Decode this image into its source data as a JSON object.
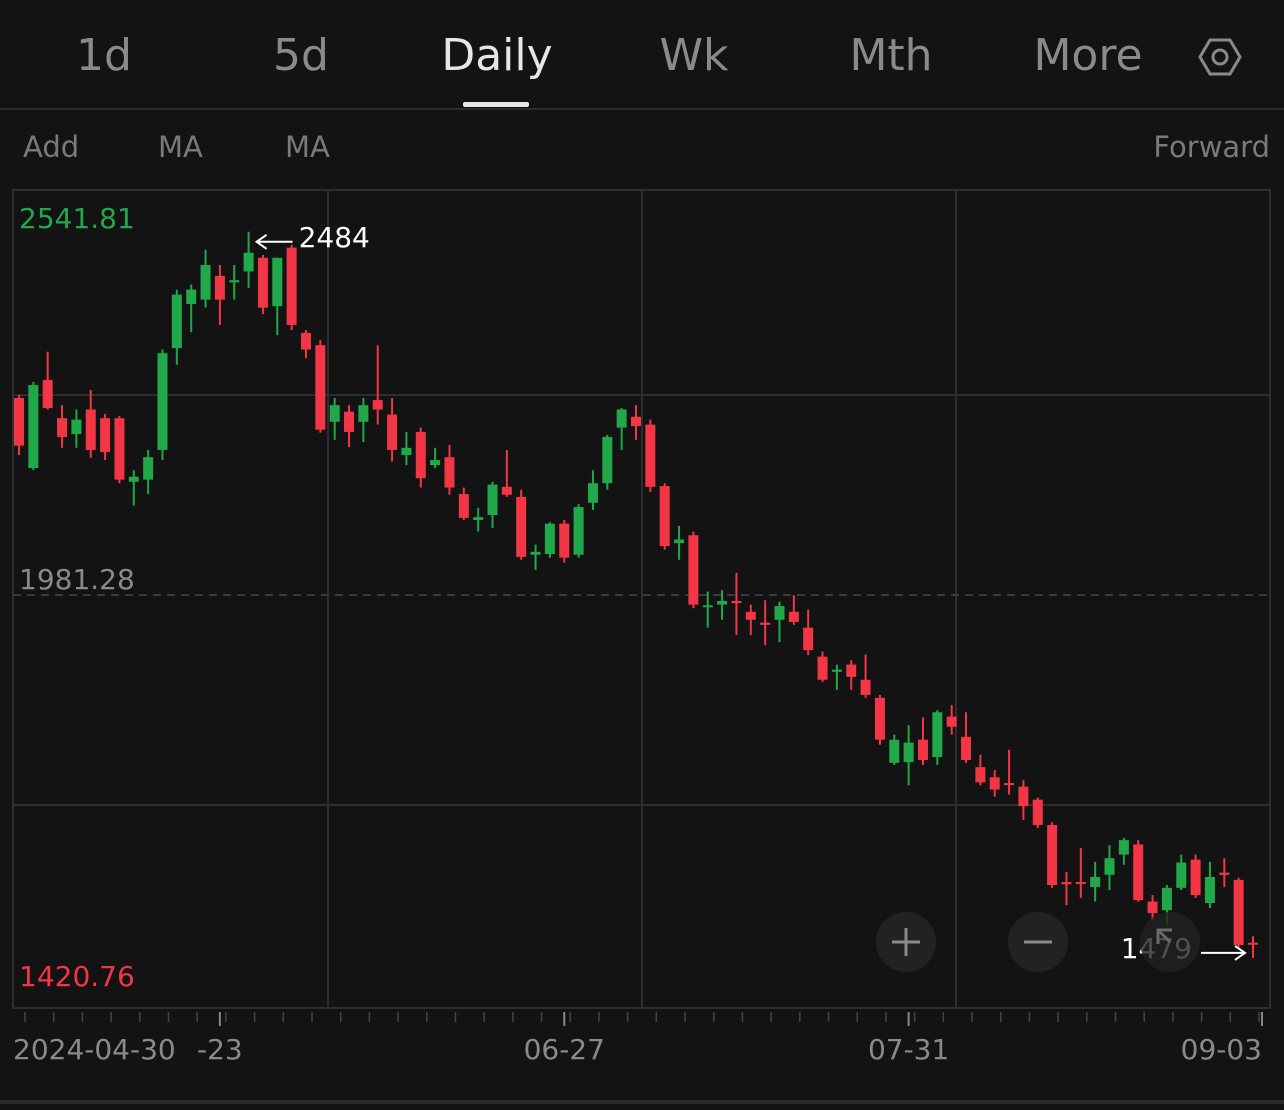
{
  "tabs": [
    "1d",
    "5d",
    "Daily",
    "Wk",
    "Mth",
    "More"
  ],
  "toolbar": [
    "Add",
    "MA",
    "MA",
    "Forward"
  ],
  "chart_data": {
    "type": "candlestick",
    "categories": [
      "2024-04-30",
      null,
      null,
      null,
      null,
      null,
      null,
      null,
      null,
      null,
      null,
      null,
      null,
      null,
      "-23",
      null,
      null,
      null,
      null,
      null,
      null,
      null,
      null,
      null,
      null,
      null,
      null,
      null,
      null,
      null,
      null,
      null,
      null,
      null,
      null,
      null,
      null,
      null,
      "06-27",
      null,
      null,
      null,
      null,
      null,
      null,
      null,
      null,
      null,
      null,
      null,
      null,
      null,
      null,
      null,
      null,
      null,
      null,
      null,
      null,
      null,
      null,
      null,
      "07-31",
      null,
      null,
      null,
      null,
      null,
      null,
      null,
      null,
      null,
      null,
      null,
      null,
      null,
      null,
      null,
      null,
      null,
      null,
      null,
      null,
      null,
      null,
      null,
      "09-03"
    ],
    "open": [
      2254,
      2157,
      2279,
      2226,
      2204,
      2238,
      2226,
      2226,
      2138,
      2141,
      2182,
      2323,
      2384,
      2390,
      2423,
      2414,
      2429,
      2448,
      2381,
      2462,
      2344,
      2327,
      2221,
      2235,
      2221,
      2251,
      2231,
      2175,
      2207,
      2161,
      2172,
      2121,
      2085,
      2092,
      2131,
      2117,
      2037,
      2038,
      2080,
      2037,
      2109,
      2136,
      2213,
      2228,
      2217,
      2132,
      2053,
      2064,
      1965,
      1968,
      1973,
      1958,
      1943,
      1947,
      1958,
      1936,
      1896,
      1875,
      1885,
      1864,
      1839,
      1749,
      1750,
      1781,
      1757,
      1813,
      1785,
      1743,
      1729,
      1721,
      1716,
      1698,
      1663,
      1584,
      1584,
      1577,
      1594,
      1622,
      1636,
      1557,
      1545,
      1576,
      1615,
      1555,
      1597,
      1587,
      1500
    ],
    "high": [
      2258,
      2276,
      2318,
      2244,
      2238,
      2265,
      2232,
      2229,
      2154,
      2182,
      2321,
      2404,
      2411,
      2459,
      2438,
      2438,
      2484,
      2452,
      2448,
      2466,
      2348,
      2334,
      2254,
      2244,
      2254,
      2327,
      2254,
      2207,
      2213,
      2185,
      2189,
      2130,
      2102,
      2138,
      2182,
      2127,
      2051,
      2082,
      2085,
      2107,
      2154,
      2203,
      2240,
      2244,
      2224,
      2136,
      2077,
      2069,
      1986,
      1988,
      2012,
      1968,
      1974,
      1972,
      1981,
      1961,
      1903,
      1885,
      1891,
      1899,
      1843,
      1788,
      1801,
      1812,
      1822,
      1829,
      1819,
      1760,
      1739,
      1767,
      1725,
      1701,
      1667,
      1598,
      1631,
      1612,
      1635,
      1645,
      1642,
      1566,
      1580,
      1622,
      1622,
      1612,
      1617,
      1590,
      1509
    ],
    "low": [
      2175,
      2154,
      2238,
      2185,
      2185,
      2171,
      2168,
      2136,
      2105,
      2121,
      2168,
      2300,
      2345,
      2379,
      2355,
      2390,
      2406,
      2370,
      2341,
      2348,
      2309,
      2206,
      2196,
      2186,
      2193,
      2217,
      2166,
      2161,
      2130,
      2157,
      2120,
      2085,
      2069,
      2074,
      2117,
      2030,
      2016,
      2033,
      2026,
      2033,
      2099,
      2127,
      2182,
      2196,
      2124,
      2044,
      2030,
      1963,
      1936,
      1947,
      1926,
      1926,
      1912,
      1916,
      1940,
      1898,
      1861,
      1850,
      1850,
      1839,
      1774,
      1746,
      1718,
      1746,
      1746,
      1788,
      1749,
      1718,
      1702,
      1705,
      1670,
      1659,
      1576,
      1552,
      1562,
      1557,
      1573,
      1608,
      1557,
      1532,
      1525,
      1573,
      1562,
      1548,
      1577,
      1494,
      1479
    ],
    "close": [
      2188,
      2272,
      2240,
      2200,
      2224,
      2182,
      2179,
      2141,
      2145,
      2172,
      2316,
      2397,
      2404,
      2438,
      2390,
      2417,
      2455,
      2379,
      2448,
      2355,
      2321,
      2210,
      2244,
      2207,
      2244,
      2238,
      2182,
      2185,
      2143,
      2168,
      2130,
      2088,
      2089,
      2134,
      2120,
      2034,
      2041,
      2080,
      2033,
      2103,
      2136,
      2200,
      2238,
      2215,
      2131,
      2049,
      2058,
      1968,
      1967,
      1973,
      1970,
      1947,
      1940,
      1966,
      1944,
      1905,
      1864,
      1878,
      1868,
      1843,
      1781,
      1781,
      1777,
      1753,
      1819,
      1799,
      1753,
      1722,
      1712,
      1720,
      1689,
      1663,
      1580,
      1581,
      1583,
      1591,
      1617,
      1642,
      1559,
      1541,
      1576,
      1611,
      1566,
      1591,
      1594,
      1497,
      1498
    ],
    "up_color": "#21a84a",
    "down_color": "#f23645",
    "ylim": [
      1420.76,
      2541.81
    ],
    "yticks": [
      1420.76,
      1981.28,
      2541.81
    ],
    "high_annotation": 2484,
    "low_annotation": 1479
  }
}
